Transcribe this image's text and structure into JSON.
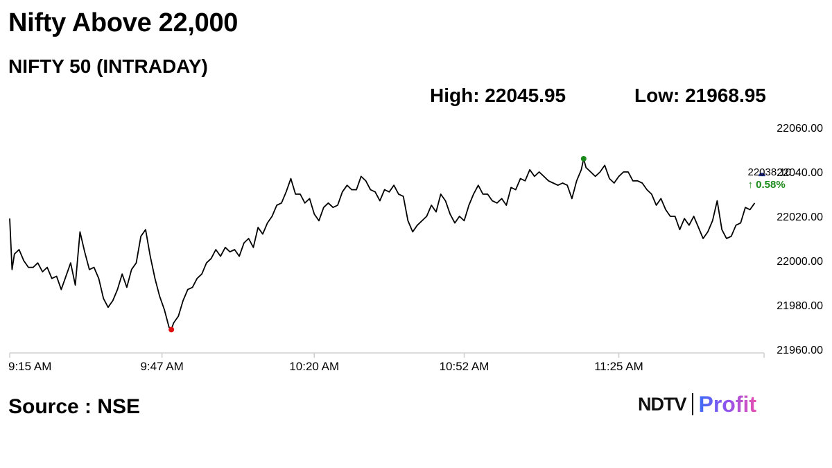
{
  "headline": "Nifty Above 22,000",
  "subtitle": "NIFTY 50 (INTRADAY)",
  "stats": {
    "high_label": "High: 22045.95",
    "low_label": "Low: 21968.95"
  },
  "source": "Source : NSE",
  "logo": {
    "brand": "NDTV",
    "product": "Profit"
  },
  "colors": {
    "line": "#000000",
    "high_marker": "#1a8a1a",
    "low_marker": "#e01010",
    "last_marker": "#1f2f8f",
    "change_text": "#1a8a1a",
    "axis": "#cfcfcf"
  },
  "chart_data": {
    "type": "line",
    "title": "NIFTY 50 (INTRADAY)",
    "xlabel": "",
    "ylabel": "",
    "x_ticks": [
      "9:15 AM",
      "9:47 AM",
      "10:20 AM",
      "10:52 AM",
      "11:25 AM"
    ],
    "y_ticks": [
      "22060.00",
      "22040.00",
      "22020.00",
      "22000.00",
      "21980.00",
      "21960.00"
    ],
    "ylim": [
      21960,
      22060
    ],
    "x_range_minutes": [
      0,
      161
    ],
    "grid": false,
    "series": [
      {
        "points": [
          [
            0,
            22019
          ],
          [
            0.5,
            21996
          ],
          [
            1,
            22003
          ],
          [
            2,
            22005
          ],
          [
            3,
            22000
          ],
          [
            4,
            21997
          ],
          [
            5,
            21997
          ],
          [
            6,
            21999
          ],
          [
            7,
            21995
          ],
          [
            8,
            21997
          ],
          [
            9,
            21992
          ],
          [
            10,
            21993
          ],
          [
            11,
            21987
          ],
          [
            12,
            21993
          ],
          [
            13,
            21999
          ],
          [
            14,
            21989
          ],
          [
            15,
            22013
          ],
          [
            16,
            22004
          ],
          [
            17,
            21996
          ],
          [
            18,
            21997
          ],
          [
            19,
            21992
          ],
          [
            20,
            21983
          ],
          [
            21,
            21979
          ],
          [
            22,
            21982
          ],
          [
            23,
            21987
          ],
          [
            24,
            21994
          ],
          [
            25,
            21988
          ],
          [
            26,
            21996
          ],
          [
            27,
            21999
          ],
          [
            28,
            22011
          ],
          [
            29,
            22014
          ],
          [
            30,
            22002
          ],
          [
            31,
            21992
          ],
          [
            32,
            21984
          ],
          [
            33,
            21978
          ],
          [
            34,
            21970
          ],
          [
            34.5,
            21969
          ],
          [
            35,
            21972
          ],
          [
            36,
            21975
          ],
          [
            37,
            21982
          ],
          [
            38,
            21987
          ],
          [
            39,
            21988
          ],
          [
            40,
            21992
          ],
          [
            41,
            21994
          ],
          [
            42,
            21999
          ],
          [
            43,
            22001
          ],
          [
            44,
            22005
          ],
          [
            45,
            22002
          ],
          [
            46,
            22006
          ],
          [
            47,
            22004
          ],
          [
            48,
            22005
          ],
          [
            49,
            22002
          ],
          [
            50,
            22008
          ],
          [
            51,
            22010
          ],
          [
            52,
            22006
          ],
          [
            53,
            22015
          ],
          [
            54,
            22012
          ],
          [
            55,
            22017
          ],
          [
            56,
            22020
          ],
          [
            57,
            22025
          ],
          [
            58,
            22026
          ],
          [
            59,
            22031
          ],
          [
            60,
            22037
          ],
          [
            61,
            22030
          ],
          [
            62,
            22030
          ],
          [
            63,
            22026
          ],
          [
            64,
            22028
          ],
          [
            65,
            22021
          ],
          [
            66,
            22018
          ],
          [
            67,
            22024
          ],
          [
            68,
            22026
          ],
          [
            69,
            22024
          ],
          [
            70,
            22025
          ],
          [
            71,
            22031
          ],
          [
            72,
            22034
          ],
          [
            73,
            22032
          ],
          [
            74,
            22032
          ],
          [
            75,
            22038
          ],
          [
            76,
            22036
          ],
          [
            77,
            22032
          ],
          [
            78,
            22031
          ],
          [
            79,
            22027
          ],
          [
            80,
            22032
          ],
          [
            81,
            22031
          ],
          [
            82,
            22034
          ],
          [
            83,
            22030
          ],
          [
            84,
            22029
          ],
          [
            85,
            22018
          ],
          [
            86,
            22013
          ],
          [
            87,
            22016
          ],
          [
            88,
            22018
          ],
          [
            89,
            22020
          ],
          [
            90,
            22025
          ],
          [
            91,
            22022
          ],
          [
            92,
            22030
          ],
          [
            93,
            22027
          ],
          [
            94,
            22021
          ],
          [
            95,
            22017
          ],
          [
            96,
            22020
          ],
          [
            97,
            22018
          ],
          [
            98,
            22025
          ],
          [
            99,
            22030
          ],
          [
            100,
            22034
          ],
          [
            101,
            22030
          ],
          [
            102,
            22030
          ],
          [
            103,
            22027
          ],
          [
            104,
            22026
          ],
          [
            105,
            22028
          ],
          [
            106,
            22025
          ],
          [
            107,
            22033
          ],
          [
            108,
            22032
          ],
          [
            109,
            22037
          ],
          [
            110,
            22036
          ],
          [
            111,
            22041
          ],
          [
            112,
            22038
          ],
          [
            113,
            22040
          ],
          [
            114,
            22038
          ],
          [
            115,
            22036
          ],
          [
            116,
            22035
          ],
          [
            117,
            22034
          ],
          [
            118,
            22035
          ],
          [
            119,
            22034
          ],
          [
            120,
            22028
          ],
          [
            121,
            22036
          ],
          [
            122,
            22041
          ],
          [
            122.5,
            22046
          ],
          [
            123,
            22042
          ],
          [
            124,
            22040
          ],
          [
            125,
            22038
          ],
          [
            126,
            22040
          ],
          [
            127,
            22043
          ],
          [
            128,
            22037
          ],
          [
            129,
            22035
          ],
          [
            130,
            22038
          ],
          [
            131,
            22040
          ],
          [
            132,
            22040
          ],
          [
            133,
            22036
          ],
          [
            134,
            22036
          ],
          [
            135,
            22035
          ],
          [
            136,
            22032
          ],
          [
            137,
            22030
          ],
          [
            138,
            22025
          ],
          [
            139,
            22028
          ],
          [
            140,
            22023
          ],
          [
            141,
            22020
          ],
          [
            142,
            22020
          ],
          [
            143,
            22014
          ],
          [
            144,
            22019
          ],
          [
            145,
            22016
          ],
          [
            146,
            22020
          ],
          [
            147,
            22015
          ],
          [
            148,
            22010
          ],
          [
            149,
            22013
          ],
          [
            150,
            22018
          ],
          [
            151,
            22027
          ],
          [
            152,
            22014
          ],
          [
            153,
            22010
          ],
          [
            154,
            22011
          ],
          [
            155,
            22016
          ],
          [
            156,
            22017
          ],
          [
            157,
            22024
          ],
          [
            158,
            22023
          ],
          [
            159,
            22026
          ]
        ]
      }
    ],
    "high": {
      "x": 122.5,
      "value": 22045.95
    },
    "low": {
      "x": 34.5,
      "value": 21968.95
    },
    "last": {
      "value": 22038.1,
      "label": "22038.10",
      "change_label": "↑ 0.58%"
    }
  }
}
